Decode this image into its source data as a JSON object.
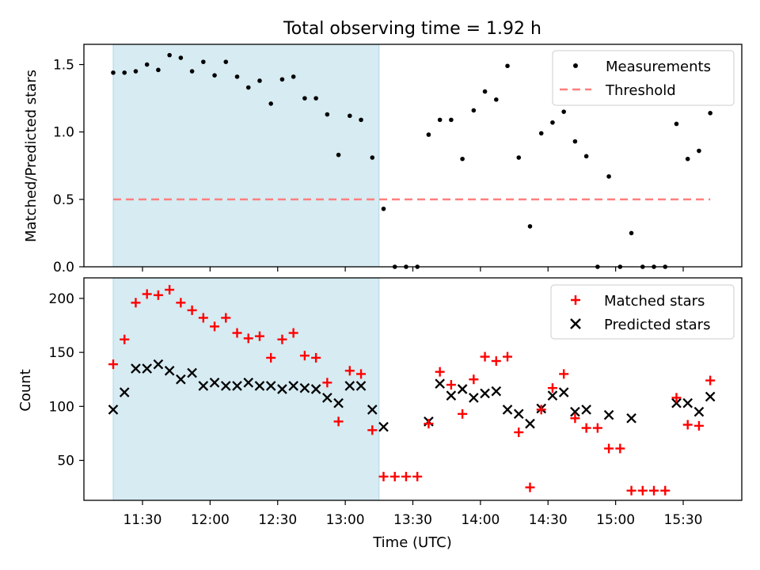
{
  "title": "Total observing time = 1.92 h",
  "chart_data": [
    {
      "type": "scatter",
      "panel": "top",
      "ylabel": "Matched/Predicted stars",
      "ylim": [
        0,
        1.65
      ],
      "yticks": [
        0.0,
        0.5,
        1.0,
        1.5
      ],
      "ytick_labels": [
        "0.0",
        "0.5",
        "1.0",
        "1.5"
      ],
      "shaded_span": [
        "11:17",
        "13:15"
      ],
      "legend_position": "upper right",
      "series": [
        {
          "name": "Measurements",
          "marker": "dot",
          "color": "#000000",
          "x": [
            "11:17",
            "11:22",
            "11:27",
            "11:32",
            "11:37",
            "11:42",
            "11:47",
            "11:52",
            "11:57",
            "12:02",
            "12:07",
            "12:12",
            "12:17",
            "12:22",
            "12:27",
            "12:32",
            "12:37",
            "12:42",
            "12:47",
            "12:52",
            "12:57",
            "13:02",
            "13:07",
            "13:12",
            "13:17",
            "13:22",
            "13:27",
            "13:32",
            "13:37",
            "13:42",
            "13:47",
            "13:52",
            "13:57",
            "14:02",
            "14:07",
            "14:12",
            "14:17",
            "14:22",
            "14:27",
            "14:32",
            "14:37",
            "14:42",
            "14:47",
            "14:52",
            "14:57",
            "15:02",
            "15:07",
            "15:12",
            "15:17",
            "15:22",
            "15:27",
            "15:32",
            "15:37",
            "15:42"
          ],
          "y": [
            1.44,
            1.44,
            1.45,
            1.5,
            1.46,
            1.57,
            1.55,
            1.45,
            1.52,
            1.42,
            1.52,
            1.41,
            1.33,
            1.38,
            1.21,
            1.39,
            1.41,
            1.25,
            1.25,
            1.13,
            0.83,
            1.12,
            1.09,
            0.81,
            0.43,
            0,
            0,
            0,
            0.98,
            1.09,
            1.09,
            0.8,
            1.16,
            1.3,
            1.24,
            1.49,
            0.81,
            0.3,
            0.99,
            1.07,
            1.15,
            0.93,
            0.82,
            0,
            0.67,
            0,
            0.25,
            0,
            0,
            0,
            1.06,
            0.8,
            0.86,
            1.14
          ]
        },
        {
          "name": "Threshold",
          "line_style": "dashed",
          "color": "#ff7f7f",
          "x": [
            "11:17",
            "15:42"
          ],
          "y": [
            0.5,
            0.5
          ]
        }
      ]
    },
    {
      "type": "scatter",
      "panel": "bottom",
      "xlabel": "Time (UTC)",
      "ylabel": "Count",
      "ylim": [
        13,
        219
      ],
      "yticks": [
        50,
        100,
        150,
        200
      ],
      "ytick_labels": [
        "50",
        "100",
        "150",
        "200"
      ],
      "xticks": [
        "11:30",
        "12:00",
        "12:30",
        "13:00",
        "13:30",
        "14:00",
        "14:30",
        "15:00",
        "15:30"
      ],
      "xlim": [
        "11:04",
        "15:56"
      ],
      "shaded_span": [
        "11:17",
        "13:15"
      ],
      "legend_position": "upper right",
      "series": [
        {
          "name": "Matched stars",
          "marker": "plus",
          "color": "#ff0000",
          "x": [
            "11:17",
            "11:22",
            "11:27",
            "11:32",
            "11:37",
            "11:42",
            "11:47",
            "11:52",
            "11:57",
            "12:02",
            "12:07",
            "12:12",
            "12:17",
            "12:22",
            "12:27",
            "12:32",
            "12:37",
            "12:42",
            "12:47",
            "12:52",
            "12:57",
            "13:02",
            "13:07",
            "13:12",
            "13:17",
            "13:22",
            "13:27",
            "13:32",
            "13:37",
            "13:42",
            "13:47",
            "13:52",
            "13:57",
            "14:02",
            "14:07",
            "14:12",
            "14:17",
            "14:22",
            "14:27",
            "14:32",
            "14:37",
            "14:42",
            "14:47",
            "14:52",
            "14:57",
            "15:02",
            "15:07",
            "15:12",
            "15:17",
            "15:22",
            "15:27",
            "15:32",
            "15:37",
            "15:42"
          ],
          "y": [
            139,
            162,
            196,
            204,
            203,
            208,
            196,
            189,
            182,
            174,
            182,
            168,
            163,
            165,
            145,
            162,
            168,
            147,
            145,
            122,
            86,
            133,
            130,
            78,
            35,
            35,
            35,
            35,
            84,
            132,
            120,
            93,
            125,
            146,
            142,
            146,
            76,
            25,
            97,
            117,
            130,
            89,
            80,
            80,
            61,
            61,
            22,
            22,
            22,
            22,
            108,
            83,
            82,
            124
          ]
        },
        {
          "name": "Predicted stars",
          "marker": "x",
          "color": "#000000",
          "x": [
            "11:17",
            "11:22",
            "11:27",
            "11:32",
            "11:37",
            "11:42",
            "11:47",
            "11:52",
            "11:57",
            "12:02",
            "12:07",
            "12:12",
            "12:17",
            "12:22",
            "12:27",
            "12:32",
            "12:37",
            "12:42",
            "12:47",
            "12:52",
            "12:57",
            "13:02",
            "13:07",
            "13:12",
            "13:17",
            "13:22",
            "13:27",
            "13:32",
            "13:37",
            "13:42",
            "13:47",
            "13:52",
            "13:57",
            "14:02",
            "14:07",
            "14:12",
            "14:17",
            "14:22",
            "14:27",
            "14:32",
            "14:37",
            "14:42",
            "14:47",
            "14:52",
            "14:57",
            "15:02",
            "15:07",
            "15:12",
            "15:17",
            "15:22",
            "15:27",
            "15:32",
            "15:37",
            "15:42"
          ],
          "y": [
            97,
            113,
            135,
            135,
            139,
            133,
            125,
            131,
            119,
            122,
            119,
            119,
            122,
            119,
            119,
            116,
            119,
            117,
            116,
            108,
            103,
            119,
            119,
            97,
            81,
            null,
            null,
            null,
            86,
            121,
            110,
            116,
            108,
            112,
            114,
            97,
            93,
            84,
            98,
            110,
            113,
            95,
            97,
            null,
            92,
            null,
            89,
            null,
            null,
            null,
            103,
            103,
            95,
            109
          ]
        }
      ]
    }
  ]
}
